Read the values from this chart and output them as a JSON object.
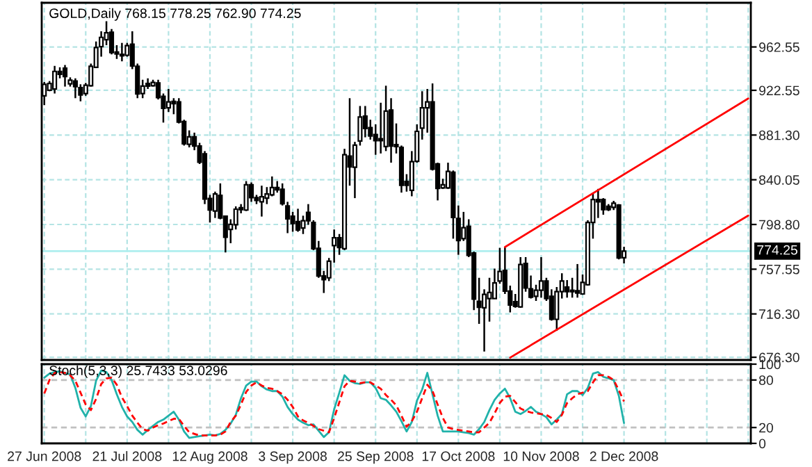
{
  "chart_data": [
    {
      "type": "candlestick",
      "title": "GOLD,Daily 768.15 778.25 762.90 774.25",
      "categories": [
        null,
        null,
        null,
        null,
        null,
        null,
        null,
        null,
        null,
        null,
        null,
        null,
        null,
        null,
        null,
        null,
        null,
        null,
        null,
        null,
        null,
        null,
        null,
        null,
        null,
        null,
        null,
        null,
        null,
        null,
        null,
        null,
        null,
        null,
        null,
        null,
        null,
        null,
        null,
        null,
        null,
        null,
        null,
        null,
        null,
        null,
        null,
        null,
        null,
        null,
        null,
        null,
        null,
        null,
        null,
        null,
        null,
        null,
        null,
        null,
        null,
        null,
        null,
        null,
        null,
        null,
        null,
        null,
        null,
        null,
        null,
        null,
        null,
        null,
        null,
        null,
        null,
        null,
        null,
        null,
        null,
        null,
        null,
        null,
        null,
        null,
        null,
        null,
        null,
        null,
        null,
        null,
        null,
        null,
        null,
        null,
        null,
        null,
        null,
        null,
        null,
        null,
        null,
        null,
        null,
        null,
        null,
        null,
        null,
        null,
        null,
        null,
        null,
        null,
        null,
        null,
        null,
        null,
        null,
        null,
        null,
        null,
        null,
        null,
        null,
        null,
        null,
        null,
        null,
        null,
        null,
        null,
        null,
        null,
        null,
        null,
        null
      ],
      "ohlc": [
        [
          917.5,
          930.2,
          908.9,
          928.1
        ],
        [
          922.6,
          931.1,
          921.7,
          928.9
        ],
        [
          923.8,
          945.1,
          919.6,
          940.0
        ],
        [
          940.0,
          943.8,
          933.6,
          937.4
        ],
        [
          943.0,
          945.9,
          926.0,
          935.3
        ],
        [
          928.5,
          934.5,
          926.0,
          931.9
        ],
        [
          931.1,
          933.6,
          915.3,
          926.0
        ],
        [
          925.1,
          928.1,
          912.4,
          918.3
        ],
        [
          919.6,
          929.4,
          917.5,
          927.2
        ],
        [
          926.8,
          947.2,
          926.0,
          944.7
        ],
        [
          943.8,
          967.6,
          943.0,
          962.1
        ],
        [
          962.9,
          977.0,
          953.6,
          971.4
        ],
        [
          969.3,
          986.3,
          964.2,
          975.7
        ],
        [
          976.1,
          979.1,
          955.7,
          957.4
        ],
        [
          957.8,
          964.2,
          951.5,
          956.1
        ],
        [
          955.7,
          966.3,
          949.3,
          954.4
        ],
        [
          954.9,
          966.3,
          953.6,
          963.8
        ],
        [
          965.1,
          977.0,
          942.1,
          945.1
        ],
        [
          944.7,
          947.2,
          915.3,
          919.2
        ],
        [
          919.6,
          932.3,
          915.3,
          926.4
        ],
        [
          928.9,
          933.6,
          923.8,
          926.4
        ],
        [
          926.8,
          932.3,
          926.0,
          929.8
        ],
        [
          929.4,
          932.3,
          914.1,
          915.8
        ],
        [
          917.0,
          919.6,
          892.8,
          906.0
        ],
        [
          906.4,
          923.8,
          902.6,
          911.9
        ],
        [
          912.4,
          915.3,
          900.5,
          910.2
        ],
        [
          911.9,
          915.3,
          892.0,
          893.2
        ],
        [
          893.7,
          895.4,
          871.6,
          873.3
        ],
        [
          872.8,
          885.6,
          869.9,
          879.6
        ],
        [
          879.6,
          883.5,
          867.3,
          871.1
        ],
        [
          871.1,
          874.1,
          854.6,
          856.3
        ],
        [
          863.9,
          866.5,
          817.6,
          822.3
        ],
        [
          822.7,
          826.1,
          800.6,
          812.1
        ],
        [
          811.2,
          829.1,
          804.8,
          826.9
        ],
        [
          825.7,
          836.7,
          803.6,
          804.8
        ],
        [
          806.5,
          806.9,
          773.0,
          787.0
        ],
        [
          794.2,
          803.6,
          781.5,
          798.9
        ],
        [
          798.5,
          815.5,
          794.2,
          812.9
        ],
        [
          814.2,
          817.6,
          809.1,
          812.5
        ],
        [
          812.1,
          838.8,
          811.2,
          835.4
        ],
        [
          835.4,
          837.6,
          819.7,
          823.5
        ],
        [
          823.5,
          826.1,
          817.6,
          821.0
        ],
        [
          819.7,
          834.6,
          806.1,
          824.4
        ],
        [
          823.1,
          833.3,
          817.6,
          826.9
        ],
        [
          826.1,
          843.1,
          824.8,
          832.9
        ],
        [
          832.9,
          838.8,
          828.2,
          830.8
        ],
        [
          831.2,
          836.7,
          816.3,
          818.0
        ],
        [
          815.9,
          819.7,
          790.8,
          804.0
        ],
        [
          806.5,
          810.4,
          792.1,
          799.7
        ],
        [
          801.4,
          813.3,
          792.1,
          793.8
        ],
        [
          795.5,
          806.9,
          790.0,
          802.3
        ],
        [
          809.9,
          817.6,
          798.5,
          802.3
        ],
        [
          800.6,
          802.7,
          775.1,
          776.4
        ],
        [
          776.8,
          783.6,
          749.6,
          751.3
        ],
        [
          751.3,
          756.0,
          735.6,
          747.9
        ],
        [
          749.6,
          767.9,
          746.6,
          764.9
        ],
        [
          779.3,
          794.2,
          763.6,
          786.6
        ],
        [
          786.6,
          790.0,
          770.8,
          777.6
        ],
        [
          776.4,
          868.6,
          775.1,
          863.1
        ],
        [
          861.8,
          915.3,
          834.6,
          852.0
        ],
        [
          851.6,
          875.0,
          823.1,
          872.0
        ],
        [
          875.8,
          908.1,
          871.6,
          897.9
        ],
        [
          898.8,
          908.1,
          879.2,
          887.3
        ],
        [
          888.1,
          895.4,
          877.1,
          880.5
        ],
        [
          881.8,
          891.1,
          863.1,
          876.2
        ],
        [
          877.9,
          911.1,
          864.3,
          876.2
        ],
        [
          870.7,
          926.8,
          866.5,
          903.4
        ],
        [
          904.3,
          915.3,
          855.8,
          871.1
        ],
        [
          872.4,
          892.0,
          864.3,
          870.7
        ],
        [
          869.9,
          871.6,
          828.2,
          835.0
        ],
        [
          838.4,
          845.2,
          829.1,
          835.0
        ],
        [
          830.3,
          866.5,
          824.8,
          856.7
        ],
        [
          857.1,
          891.1,
          855.8,
          884.7
        ],
        [
          887.7,
          921.7,
          877.1,
          906.4
        ],
        [
          906.4,
          923.8,
          883.5,
          911.9
        ],
        [
          911.9,
          928.9,
          848.6,
          849.9
        ],
        [
          854.6,
          855.8,
          821.0,
          832.0
        ],
        [
          832.5,
          841.0,
          831.6,
          835.4
        ],
        [
          832.5,
          855.8,
          831.6,
          847.8
        ],
        [
          846.9,
          848.6,
          785.7,
          805.3
        ],
        [
          804.4,
          816.3,
          770.8,
          784.0
        ],
        [
          785.7,
          810.4,
          783.6,
          795.9
        ],
        [
          797.2,
          803.6,
          768.7,
          770.4
        ],
        [
          772.5,
          773.8,
          719.8,
          730.0
        ],
        [
          727.9,
          749.6,
          707.1,
          722.4
        ],
        [
          722.0,
          739.0,
          681.6,
          734.3
        ],
        [
          730.5,
          749.6,
          709.2,
          736.0
        ],
        [
          730.5,
          758.1,
          730.5,
          744.9
        ],
        [
          746.6,
          777.2,
          744.1,
          755.5
        ],
        [
          756.4,
          778.1,
          734.7,
          737.3
        ],
        [
          737.3,
          742.4,
          717.7,
          724.5
        ],
        [
          727.5,
          734.7,
          722.0,
          723.2
        ],
        [
          722.8,
          768.7,
          722.0,
          761.9
        ],
        [
          762.8,
          768.7,
          736.8,
          740.2
        ],
        [
          739.4,
          751.7,
          730.5,
          731.7
        ],
        [
          732.6,
          743.2,
          728.3,
          738.1
        ],
        [
          738.1,
          768.7,
          731.3,
          746.6
        ],
        [
          746.6,
          749.6,
          728.3,
          730.5
        ],
        [
          732.6,
          739.0,
          710.1,
          711.3
        ],
        [
          711.3,
          741.1,
          700.7,
          736.8
        ],
        [
          736.8,
          753.8,
          730.5,
          746.6
        ],
        [
          741.1,
          747.5,
          731.3,
          736.8
        ],
        [
          738.1,
          749.6,
          731.3,
          736.8
        ],
        [
          737.7,
          762.3,
          731.3,
          735.6
        ],
        [
          734.7,
          752.6,
          733.9,
          745.3
        ],
        [
          743.2,
          802.7,
          742.4,
          800.6
        ],
        [
          800.6,
          828.2,
          785.7,
          821.8
        ],
        [
          821.8,
          831.6,
          804.8,
          819.7
        ],
        [
          821.8,
          823.1,
          807.8,
          812.5
        ],
        [
          815.5,
          817.6,
          811.2,
          812.5
        ],
        [
          814.6,
          820.6,
          812.1,
          818.4
        ],
        [
          816.7,
          817.6,
          766.6,
          767.9
        ],
        [
          768.15,
          778.25,
          762.9,
          774.25
        ],
        null,
        null,
        null,
        null,
        null,
        null,
        null,
        null,
        null,
        null,
        null,
        null,
        null,
        null,
        null,
        null,
        null,
        null,
        null,
        null,
        null,
        null,
        null,
        null
      ],
      "series": [
        {
          "type": "line",
          "color": "#ff0000",
          "values": [
            null,
            null,
            null,
            null,
            null,
            null,
            null,
            null,
            null,
            null,
            null,
            null,
            null,
            null,
            null,
            null,
            null,
            null,
            null,
            null,
            null,
            null,
            null,
            null,
            null,
            null,
            null,
            null,
            null,
            null,
            null,
            null,
            null,
            null,
            null,
            null,
            null,
            null,
            null,
            null,
            null,
            null,
            null,
            null,
            null,
            null,
            null,
            null,
            null,
            null,
            null,
            null,
            null,
            null,
            null,
            null,
            null,
            null,
            null,
            null,
            null,
            null,
            null,
            null,
            null,
            null,
            null,
            null,
            null,
            null,
            null,
            null,
            null,
            null,
            null,
            null,
            null,
            null,
            null,
            null,
            null,
            null,
            null,
            null,
            null,
            null,
            null,
            null,
            null,
            778,
            null,
            null,
            null,
            null,
            null,
            null,
            null,
            null,
            null,
            null,
            null,
            null,
            null,
            null,
            null,
            null,
            null,
            null,
            null,
            null,
            null,
            null,
            null,
            null,
            null,
            null,
            null,
            null,
            null,
            null,
            null,
            null,
            null,
            null,
            null,
            null,
            null,
            null,
            null,
            null,
            null,
            null,
            null,
            null,
            null,
            null,
            915
          ]
        },
        {
          "type": "line",
          "color": "#ff0000",
          "values": [
            null,
            null,
            null,
            null,
            null,
            null,
            null,
            null,
            null,
            null,
            null,
            null,
            null,
            null,
            null,
            null,
            null,
            null,
            null,
            null,
            null,
            null,
            null,
            null,
            null,
            null,
            null,
            null,
            null,
            null,
            null,
            null,
            null,
            null,
            null,
            null,
            null,
            null,
            null,
            null,
            null,
            null,
            null,
            null,
            null,
            null,
            null,
            null,
            null,
            null,
            null,
            null,
            null,
            null,
            null,
            null,
            null,
            null,
            null,
            null,
            null,
            null,
            null,
            null,
            null,
            null,
            null,
            null,
            null,
            null,
            null,
            null,
            null,
            null,
            null,
            null,
            null,
            null,
            null,
            null,
            null,
            null,
            null,
            null,
            null,
            null,
            null,
            null,
            null,
            null,
            676,
            null,
            null,
            null,
            null,
            null,
            null,
            null,
            null,
            null,
            null,
            null,
            null,
            null,
            null,
            null,
            null,
            null,
            null,
            null,
            null,
            null,
            null,
            null,
            null,
            null,
            null,
            null,
            null,
            null,
            null,
            null,
            null,
            null,
            null,
            null,
            null,
            null,
            null,
            null,
            null,
            null,
            null,
            null,
            null,
            null,
            807
          ]
        }
      ],
      "ylim": [
        673.8,
        1003.3
      ],
      "yticks": [
        {
          "value": 676.3,
          "label": "676.30"
        },
        {
          "value": 716.3,
          "label": "716.30"
        },
        {
          "value": 757.55,
          "label": "757.55"
        },
        {
          "value": 798.8,
          "label": "798.80"
        },
        {
          "value": 840.05,
          "label": "840.05"
        },
        {
          "value": 881.3,
          "label": "881.30"
        },
        {
          "value": 922.55,
          "label": "922.55"
        },
        {
          "value": 962.55,
          "label": "962.55"
        }
      ],
      "grid": true,
      "tick_labels": "y",
      "ref_lines": [
        {
          "axis": "y",
          "value": 774.25,
          "label": "774.25",
          "color": "#aeeeee"
        }
      ]
    },
    {
      "type": "line",
      "title": "Stoch(5,3,3) 25.7433 53.0296",
      "categories": [
        "27 Jun 2008",
        null,
        null,
        null,
        null,
        null,
        null,
        null,
        null,
        null,
        null,
        null,
        null,
        null,
        null,
        null,
        "21 Jul 2008",
        null,
        null,
        null,
        null,
        null,
        null,
        null,
        null,
        null,
        null,
        null,
        null,
        null,
        null,
        null,
        "12 Aug 2008",
        null,
        null,
        null,
        null,
        null,
        null,
        null,
        null,
        null,
        null,
        null,
        null,
        null,
        null,
        null,
        "3 Sep 2008",
        null,
        null,
        null,
        null,
        null,
        null,
        null,
        null,
        null,
        null,
        null,
        null,
        null,
        null,
        null,
        "25 Sep 2008",
        null,
        null,
        null,
        null,
        null,
        null,
        null,
        null,
        null,
        null,
        null,
        null,
        null,
        null,
        null,
        "17 Oct 2008",
        null,
        null,
        null,
        null,
        null,
        null,
        null,
        null,
        null,
        null,
        null,
        null,
        null,
        null,
        null,
        "10 Nov 2008",
        null,
        null,
        null,
        null,
        null,
        null,
        null,
        null,
        null,
        null,
        null,
        null,
        null,
        null,
        null,
        "2 Dec 2008",
        null,
        null,
        null,
        null,
        null,
        null,
        null,
        null,
        null,
        null,
        null,
        null,
        null,
        null,
        null,
        null,
        null,
        null,
        null,
        null,
        null,
        null,
        null,
        null
      ],
      "series": [
        {
          "color": "#20b2aa",
          "values": [
            83,
            88,
            90,
            91,
            89,
            87,
            70,
            45,
            34,
            47,
            79,
            92,
            90,
            80,
            62,
            46,
            34,
            27,
            17,
            11,
            17,
            22,
            27,
            30,
            35,
            40,
            30,
            15,
            7,
            8,
            9,
            10,
            11,
            10,
            12,
            17,
            25,
            36,
            57,
            73,
            78,
            78,
            72,
            68,
            66,
            66,
            59,
            46,
            37,
            30,
            26,
            23,
            24,
            16,
            8,
            14,
            43,
            64,
            86,
            79,
            76,
            75,
            77,
            77,
            70,
            57,
            55,
            48,
            40,
            28,
            15,
            27,
            54,
            68,
            89,
            62,
            35,
            15,
            15,
            15,
            15,
            14,
            13,
            11,
            18,
            27,
            42,
            55,
            63,
            69,
            57,
            40,
            37,
            41,
            46,
            40,
            37,
            33,
            24,
            30,
            37,
            62,
            66,
            66,
            61,
            70,
            88,
            90,
            84,
            82,
            80,
            60,
            25.7433,
            null,
            null,
            null,
            null,
            null,
            null,
            null,
            null,
            null,
            null,
            null,
            null,
            null,
            null,
            null,
            null,
            null,
            null,
            null,
            null,
            null,
            null,
            null,
            null
          ]
        },
        {
          "color": "#ff0000",
          "line_style": "dashed",
          "values": [
            63,
            80,
            89,
            90,
            89,
            86,
            79,
            64,
            49,
            42,
            56,
            75,
            82,
            83,
            74,
            58,
            47,
            35,
            26,
            18,
            16,
            20,
            23,
            25,
            28,
            31,
            31,
            22,
            14,
            12,
            10,
            10,
            10,
            10,
            11,
            15,
            27,
            35,
            49,
            65,
            73,
            77,
            73,
            70,
            69,
            66,
            62,
            55,
            46,
            34,
            29,
            26,
            22,
            18,
            16,
            14,
            32,
            52,
            72,
            79,
            78,
            76,
            77,
            77,
            73,
            69,
            61,
            55,
            48,
            35,
            21,
            28,
            40,
            57,
            74,
            66,
            49,
            32,
            20,
            18,
            17,
            16,
            15,
            14,
            14,
            20,
            26,
            38,
            51,
            59,
            60,
            52,
            44,
            41,
            39,
            38,
            37,
            36,
            32,
            27,
            36,
            51,
            57,
            62,
            64,
            66,
            77,
            86,
            86,
            84,
            80,
            67,
            53.0296,
            null,
            null,
            null,
            null,
            null,
            null,
            null,
            null,
            null,
            null,
            null,
            null,
            null,
            null,
            null,
            null,
            null,
            null,
            null,
            null,
            null,
            null,
            null,
            null
          ]
        }
      ],
      "ylim": [
        0,
        100
      ],
      "yticks": [
        0,
        20,
        80,
        100
      ],
      "grid": "x",
      "ref_lines": [
        {
          "axis": "y",
          "value": 20,
          "color": "#c0c0c0",
          "line_style": "dashed"
        },
        {
          "axis": "y",
          "value": 80,
          "color": "#c0c0c0",
          "line_style": "dashed"
        }
      ]
    }
  ]
}
